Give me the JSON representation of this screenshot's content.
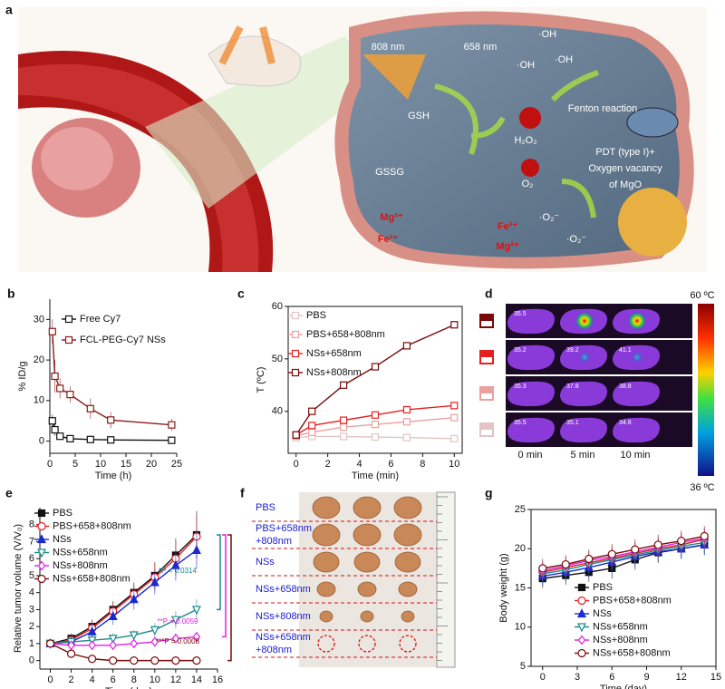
{
  "figure": {
    "panel_a": {
      "panel": "a",
      "labels": [
        "808 nm",
        "658 nm",
        "·OH",
        "·OH",
        "·OH",
        "GSH",
        "H₂O₂",
        "Fenton reaction",
        "GSSG",
        "O₂",
        "PDT (type I)+",
        "Oxygen vacancy",
        "of MgO",
        "Mg²⁺",
        "Fe³⁺",
        "Fe²⁺",
        "Mg²⁺",
        "·O₂⁻",
        "·O₂⁻"
      ]
    },
    "panel_d": {
      "panel": "d",
      "times": [
        "0 min",
        "5 min",
        "10 min"
      ],
      "temperatures": [
        [
          "35.5"
        ],
        [
          "35.2",
          "39.2",
          "41.1"
        ],
        [
          "35.3",
          "37.8",
          "38.8"
        ],
        [
          "35.5",
          "35.1",
          "34.8"
        ]
      ],
      "scale_max": "60 ºC",
      "scale_min": "36 ºC"
    },
    "panel_f": {
      "panel": "f",
      "rows": [
        [
          "PBS"
        ],
        [
          "PBS+658nm",
          "+808nm"
        ],
        [
          "NSs"
        ],
        [
          "NSs+658nm"
        ],
        [
          "NSs+808nm"
        ],
        [
          "NSs+658nm",
          "+808nm"
        ]
      ]
    }
  },
  "chart_data": [
    {
      "type": "line",
      "panel": "b",
      "xlabel": "Time (h)",
      "ylabel": "% ID/g",
      "x": [
        0.5,
        1,
        2,
        4,
        8,
        12,
        24
      ],
      "series": [
        {
          "name": "Free Cy7",
          "color": "#111111",
          "marker": "square",
          "filled": false,
          "values": [
            5,
            2.8,
            1.2,
            0.6,
            0.4,
            0.3,
            0.2
          ],
          "errors": [
            1.5,
            1.5,
            0.8,
            0.5,
            0.4,
            0.3,
            0.8
          ]
        },
        {
          "name": "FCL-PEG-Cy7 NSs",
          "color": "#8b1a1a",
          "marker": "square",
          "filled": false,
          "values": [
            27,
            16,
            13,
            11.5,
            8,
            5.2,
            4
          ],
          "errors": [
            3,
            4,
            2.5,
            2,
            2.5,
            2,
            1.5
          ]
        }
      ],
      "xlim": [
        0,
        25
      ],
      "xticks": [
        0,
        5,
        10,
        15,
        20,
        25
      ],
      "ylim": [
        -3,
        35
      ],
      "yticks": [
        0,
        10,
        20,
        30
      ],
      "legend": "upper right"
    },
    {
      "type": "line",
      "panel": "c",
      "xlabel": "Time (min)",
      "ylabel": "T (ºC)",
      "x": [
        0,
        1,
        3,
        5,
        7,
        10
      ],
      "series": [
        {
          "name": "PBS",
          "color": "#e3c3c3",
          "marker": "square",
          "filled": false,
          "values": [
            35,
            35.2,
            35.2,
            35.1,
            35,
            34.8
          ]
        },
        {
          "name": "PBS+658+808nm",
          "color": "#eba0a0",
          "marker": "square",
          "filled": false,
          "values": [
            35.3,
            36,
            37,
            37.5,
            38,
            38.8
          ]
        },
        {
          "name": "NSs+658nm",
          "color": "#e52020",
          "marker": "square",
          "filled": false,
          "values": [
            35.5,
            37.3,
            38.3,
            39.3,
            40.3,
            41.1
          ]
        },
        {
          "name": "NSs+808nm",
          "color": "#7a0a0a",
          "marker": "square",
          "filled": false,
          "values": [
            35.5,
            40,
            45,
            48.5,
            52.5,
            56.5
          ]
        }
      ],
      "xlim": [
        -0.5,
        10.5
      ],
      "xticks": [
        0,
        2,
        4,
        6,
        8,
        10
      ],
      "ylim": [
        32,
        60
      ],
      "yticks": [
        40,
        50,
        60
      ],
      "legend": "upper left"
    },
    {
      "type": "line",
      "panel": "e",
      "xlabel": "Time (day)",
      "ylabel": "Relative tumor volume (V/V₀)",
      "x": [
        0,
        2,
        4,
        6,
        8,
        10,
        12,
        14
      ],
      "series": [
        {
          "name": "PBS",
          "color": "#111111",
          "marker": "square",
          "filled": true,
          "values": [
            1,
            1.3,
            2,
            3,
            4,
            5,
            6.2,
            7.4
          ],
          "errors": [
            0.2,
            0.3,
            0.4,
            0.5,
            0.6,
            0.8,
            1,
            1.4
          ]
        },
        {
          "name": "PBS+658+808nm",
          "color": "#e52020",
          "marker": "circle",
          "filled": false,
          "values": [
            1,
            1.2,
            1.9,
            2.9,
            3.9,
            4.9,
            6,
            7.3
          ],
          "errors": [
            0.2,
            0.3,
            0.4,
            0.5,
            0.6,
            0.8,
            1,
            1.2
          ]
        },
        {
          "name": "NSs",
          "color": "#1a2ad0",
          "marker": "triangle",
          "filled": true,
          "values": [
            1,
            1.1,
            1.7,
            2.6,
            3.6,
            4.6,
            5.6,
            6.5
          ],
          "errors": [
            0.2,
            0.3,
            0.4,
            0.5,
            0.6,
            0.7,
            0.9,
            1.1
          ]
        },
        {
          "name": "NSs+658nm",
          "color": "#1a8a8a",
          "marker": "triangle-down",
          "filled": false,
          "values": [
            1,
            1.1,
            1.2,
            1.3,
            1.5,
            1.8,
            2.4,
            3.0
          ],
          "errors": [
            0.1,
            0.2,
            0.2,
            0.3,
            0.3,
            0.4,
            0.5,
            0.6
          ]
        },
        {
          "name": "NSs+808nm",
          "color": "#e020e0",
          "marker": "diamond",
          "filled": false,
          "values": [
            1,
            0.9,
            0.9,
            0.9,
            1.0,
            1.1,
            1.3,
            1.4
          ],
          "errors": [
            0.1,
            0.1,
            0.2,
            0.2,
            0.2,
            0.3,
            0.3,
            0.3
          ]
        },
        {
          "name": "NSs+658+808nm",
          "color": "#7a0a0a",
          "marker": "circle",
          "filled": false,
          "values": [
            1,
            0.4,
            0.1,
            0,
            0,
            0,
            0,
            0
          ],
          "errors": [
            0.1,
            0.1,
            0.05,
            0.02,
            0.02,
            0.02,
            0.02,
            0.02
          ]
        }
      ],
      "xlim": [
        -1,
        16
      ],
      "xticks": [
        0,
        2,
        4,
        6,
        8,
        10,
        12,
        14,
        16
      ],
      "ylim": [
        -0.5,
        9
      ],
      "yticks": [
        0,
        1,
        2,
        3,
        4,
        5,
        6,
        7,
        8
      ],
      "legend": "upper left",
      "annotations": [
        {
          "text": "*P = 0.0314",
          "color": "#1a8a8a"
        },
        {
          "text": "**P = 0.0059",
          "color": "#e020e0"
        },
        {
          "text": "***P = 0.0008",
          "color": "#7a0a0a"
        }
      ]
    },
    {
      "type": "line",
      "panel": "g",
      "xlabel": "Time (day)",
      "ylabel": "Body weight (g)",
      "x": [
        0,
        2,
        4,
        6,
        8,
        10,
        12,
        14
      ],
      "series": [
        {
          "name": "PBS",
          "color": "#111111",
          "marker": "square",
          "filled": true,
          "values": [
            16.2,
            16.6,
            17,
            17.5,
            18.6,
            19.5,
            20,
            20.5
          ],
          "errors": [
            1.2,
            1.2,
            1.2,
            1.3,
            1.3,
            1.3,
            1.3,
            1.3
          ]
        },
        {
          "name": "PBS+658+808nm",
          "color": "#e52020",
          "marker": "circle",
          "filled": false,
          "values": [
            17,
            17.6,
            18.2,
            18.8,
            19.4,
            20,
            20.5,
            21.2
          ],
          "errors": [
            1.2,
            1.2,
            1.2,
            1.3,
            1.3,
            1.3,
            1.3,
            1.3
          ]
        },
        {
          "name": "NSs",
          "color": "#1a2ad0",
          "marker": "triangle",
          "filled": true,
          "values": [
            16.5,
            17,
            17.6,
            18.3,
            19,
            19.6,
            20,
            20.5
          ],
          "errors": [
            1.2,
            1.2,
            1.2,
            1.3,
            1.3,
            1.3,
            1.3,
            1.3
          ]
        },
        {
          "name": "NSs+658nm",
          "color": "#1a8a8a",
          "marker": "triangle-down",
          "filled": false,
          "values": [
            16.8,
            17.3,
            18,
            18.6,
            19.2,
            19.8,
            20.3,
            20.8
          ],
          "errors": [
            1.2,
            1.2,
            1.2,
            1.3,
            1.3,
            1.3,
            1.3,
            1.3
          ]
        },
        {
          "name": "NSs+808nm",
          "color": "#e020e0",
          "marker": "diamond",
          "filled": false,
          "values": [
            17.2,
            17.8,
            18.5,
            19,
            19.6,
            20.2,
            20.8,
            21.3
          ],
          "errors": [
            1.2,
            1.2,
            1.2,
            1.3,
            1.3,
            1.3,
            1.3,
            1.3
          ]
        },
        {
          "name": "NSs+658+808nm",
          "color": "#7a0a0a",
          "marker": "circle",
          "filled": false,
          "values": [
            17.5,
            18,
            18.7,
            19.3,
            19.9,
            20.5,
            21,
            21.6
          ],
          "errors": [
            1.2,
            1.2,
            1.2,
            1.3,
            1.3,
            1.3,
            1.3,
            1.3
          ]
        }
      ],
      "xlim": [
        -1,
        15
      ],
      "xticks": [
        0,
        3,
        6,
        9,
        12,
        15
      ],
      "ylim": [
        5,
        25
      ],
      "yticks": [
        5,
        10,
        15,
        20,
        25
      ],
      "legend": "lower right"
    }
  ]
}
